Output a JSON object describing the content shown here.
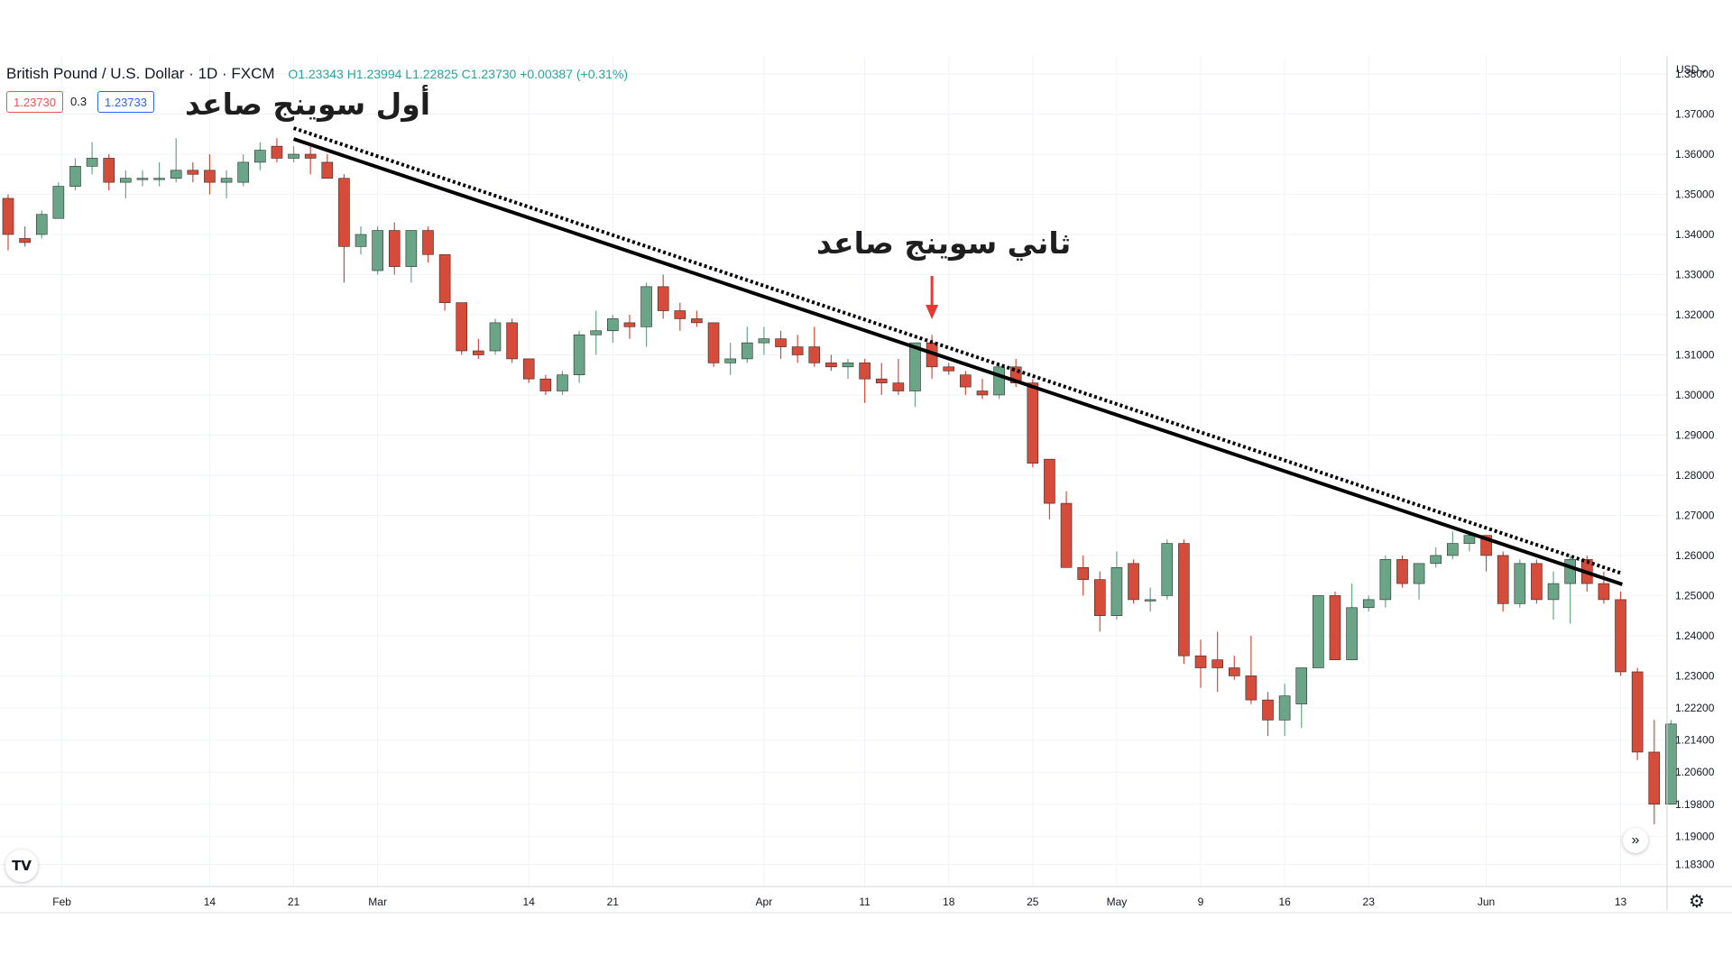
{
  "header": {
    "symbol": "British Pound / U.S. Dollar · 1D · FXCM",
    "ohlc": "O1.23343 H1.23994 L1.22825 C1.23730 +0.00387 (+0.31%)",
    "bid": "1.23730",
    "spread": "0.3",
    "ask": "1.23733"
  },
  "annotations": {
    "first_swing": "أول سوينج صاعد",
    "second_swing": "ثاني سوينج صاعد"
  },
  "axis": {
    "currency": "USD"
  },
  "icons": {
    "logo": "tradingview-logo-icon",
    "scroll": "scroll-to-latest-icon",
    "settings": "gear-icon"
  },
  "colors": {
    "up": "#6aa587",
    "down": "#d64c3b",
    "trendline": "#000000",
    "arrow": "#e53935"
  },
  "chart_data": {
    "type": "candlestick",
    "title": "British Pound / U.S. Dollar · 1D · FXCM",
    "ylim": [
      1.1775,
      1.3845
    ],
    "y_ticks": [
      1.38,
      1.37,
      1.36,
      1.35,
      1.34,
      1.33,
      1.32,
      1.31,
      1.3,
      1.29,
      1.28,
      1.27,
      1.26,
      1.25,
      1.24,
      1.23,
      1.222,
      1.214,
      1.206,
      1.198,
      1.19,
      1.183
    ],
    "x_ticks": [
      {
        "label": "Feb",
        "bar": 3.2
      },
      {
        "label": "14",
        "bar": 12
      },
      {
        "label": "21",
        "bar": 17
      },
      {
        "label": "Mar",
        "bar": 22
      },
      {
        "label": "14",
        "bar": 31
      },
      {
        "label": "21",
        "bar": 36
      },
      {
        "label": "Apr",
        "bar": 45
      },
      {
        "label": "11",
        "bar": 51
      },
      {
        "label": "18",
        "bar": 56
      },
      {
        "label": "25",
        "bar": 61
      },
      {
        "label": "May",
        "bar": 66
      },
      {
        "label": "9",
        "bar": 71
      },
      {
        "label": "16",
        "bar": 76
      },
      {
        "label": "23",
        "bar": 81
      },
      {
        "label": "Jun",
        "bar": 88
      },
      {
        "label": "13",
        "bar": 96
      }
    ],
    "candles": [
      [
        1.349,
        1.35,
        1.336,
        1.34
      ],
      [
        1.339,
        1.342,
        1.337,
        1.338
      ],
      [
        1.34,
        1.346,
        1.339,
        1.345
      ],
      [
        1.344,
        1.353,
        1.344,
        1.352
      ],
      [
        1.352,
        1.359,
        1.351,
        1.357
      ],
      [
        1.357,
        1.363,
        1.355,
        1.359
      ],
      [
        1.359,
        1.36,
        1.351,
        1.353
      ],
      [
        1.353,
        1.356,
        1.349,
        1.354
      ],
      [
        1.354,
        1.356,
        1.352,
        1.354
      ],
      [
        1.354,
        1.358,
        1.352,
        1.354
      ],
      [
        1.354,
        1.364,
        1.353,
        1.356
      ],
      [
        1.356,
        1.358,
        1.353,
        1.355
      ],
      [
        1.356,
        1.36,
        1.35,
        1.353
      ],
      [
        1.353,
        1.356,
        1.349,
        1.354
      ],
      [
        1.353,
        1.36,
        1.352,
        1.358
      ],
      [
        1.358,
        1.363,
        1.356,
        1.361
      ],
      [
        1.362,
        1.364,
        1.358,
        1.359
      ],
      [
        1.359,
        1.362,
        1.358,
        1.36
      ],
      [
        1.36,
        1.362,
        1.355,
        1.359
      ],
      [
        1.358,
        1.36,
        1.354,
        1.354
      ],
      [
        1.354,
        1.355,
        1.328,
        1.337
      ],
      [
        1.337,
        1.342,
        1.335,
        1.34
      ],
      [
        1.331,
        1.342,
        1.33,
        1.341
      ],
      [
        1.341,
        1.343,
        1.33,
        1.332
      ],
      [
        1.332,
        1.341,
        1.328,
        1.341
      ],
      [
        1.341,
        1.342,
        1.333,
        1.335
      ],
      [
        1.335,
        1.335,
        1.321,
        1.323
      ],
      [
        1.323,
        1.323,
        1.31,
        1.311
      ],
      [
        1.311,
        1.314,
        1.309,
        1.31
      ],
      [
        1.311,
        1.319,
        1.31,
        1.318
      ],
      [
        1.318,
        1.319,
        1.308,
        1.309
      ],
      [
        1.309,
        1.309,
        1.303,
        1.304
      ],
      [
        1.304,
        1.305,
        1.3,
        1.301
      ],
      [
        1.301,
        1.306,
        1.3,
        1.305
      ],
      [
        1.305,
        1.316,
        1.303,
        1.315
      ],
      [
        1.315,
        1.321,
        1.31,
        1.316
      ],
      [
        1.316,
        1.32,
        1.313,
        1.319
      ],
      [
        1.318,
        1.32,
        1.314,
        1.317
      ],
      [
        1.317,
        1.328,
        1.312,
        1.327
      ],
      [
        1.327,
        1.33,
        1.319,
        1.321
      ],
      [
        1.321,
        1.323,
        1.316,
        1.319
      ],
      [
        1.319,
        1.321,
        1.317,
        1.318
      ],
      [
        1.318,
        1.318,
        1.307,
        1.308
      ],
      [
        1.308,
        1.313,
        1.305,
        1.309
      ],
      [
        1.309,
        1.317,
        1.308,
        1.313
      ],
      [
        1.313,
        1.317,
        1.31,
        1.314
      ],
      [
        1.314,
        1.316,
        1.309,
        1.312
      ],
      [
        1.312,
        1.315,
        1.308,
        1.31
      ],
      [
        1.312,
        1.317,
        1.307,
        1.308
      ],
      [
        1.308,
        1.31,
        1.306,
        1.307
      ],
      [
        1.307,
        1.309,
        1.304,
        1.308
      ],
      [
        1.308,
        1.309,
        1.298,
        1.304
      ],
      [
        1.304,
        1.308,
        1.3,
        1.303
      ],
      [
        1.303,
        1.309,
        1.3,
        1.301
      ],
      [
        1.301,
        1.313,
        1.297,
        1.313
      ],
      [
        1.313,
        1.315,
        1.304,
        1.307
      ],
      [
        1.307,
        1.308,
        1.305,
        1.306
      ],
      [
        1.305,
        1.306,
        1.3,
        1.302
      ],
      [
        1.301,
        1.304,
        1.299,
        1.3
      ],
      [
        1.3,
        1.308,
        1.299,
        1.307
      ],
      [
        1.307,
        1.309,
        1.302,
        1.303
      ],
      [
        1.303,
        1.304,
        1.282,
        1.283
      ],
      [
        1.284,
        1.284,
        1.269,
        1.273
      ],
      [
        1.273,
        1.276,
        1.257,
        1.257
      ],
      [
        1.257,
        1.26,
        1.25,
        1.254
      ],
      [
        1.254,
        1.256,
        1.241,
        1.245
      ],
      [
        1.245,
        1.261,
        1.244,
        1.257
      ],
      [
        1.258,
        1.259,
        1.248,
        1.249
      ],
      [
        1.249,
        1.252,
        1.246,
        1.249
      ],
      [
        1.25,
        1.264,
        1.249,
        1.263
      ],
      [
        1.263,
        1.264,
        1.233,
        1.235
      ],
      [
        1.235,
        1.239,
        1.227,
        1.232
      ],
      [
        1.234,
        1.241,
        1.226,
        1.232
      ],
      [
        1.232,
        1.235,
        1.229,
        1.23
      ],
      [
        1.23,
        1.24,
        1.223,
        1.224
      ],
      [
        1.224,
        1.226,
        1.215,
        1.219
      ],
      [
        1.219,
        1.228,
        1.215,
        1.225
      ],
      [
        1.223,
        1.232,
        1.217,
        1.232
      ],
      [
        1.232,
        1.25,
        1.232,
        1.25
      ],
      [
        1.25,
        1.251,
        1.234,
        1.234
      ],
      [
        1.234,
        1.253,
        1.234,
        1.247
      ],
      [
        1.247,
        1.25,
        1.246,
        1.249
      ],
      [
        1.249,
        1.26,
        1.247,
        1.259
      ],
      [
        1.259,
        1.26,
        1.252,
        1.253
      ],
      [
        1.253,
        1.258,
        1.249,
        1.258
      ],
      [
        1.258,
        1.262,
        1.257,
        1.26
      ],
      [
        1.26,
        1.266,
        1.259,
        1.263
      ],
      [
        1.263,
        1.266,
        1.261,
        1.265
      ],
      [
        1.265,
        1.265,
        1.256,
        1.26
      ],
      [
        1.26,
        1.261,
        1.246,
        1.248
      ],
      [
        1.248,
        1.259,
        1.247,
        1.258
      ],
      [
        1.258,
        1.259,
        1.248,
        1.249
      ],
      [
        1.249,
        1.256,
        1.244,
        1.253
      ],
      [
        1.253,
        1.26,
        1.243,
        1.259
      ],
      [
        1.259,
        1.26,
        1.251,
        1.253
      ],
      [
        1.253,
        1.256,
        1.248,
        1.249
      ],
      [
        1.249,
        1.251,
        1.23,
        1.231
      ],
      [
        1.231,
        1.232,
        1.209,
        1.211
      ],
      [
        1.211,
        1.219,
        1.193,
        1.198
      ],
      [
        1.198,
        1.219,
        1.198,
        1.218
      ]
    ],
    "trendline": {
      "start": {
        "bar": 17,
        "price": 1.3665
      },
      "end": {
        "bar": 96.1,
        "price": 1.2555
      }
    }
  }
}
